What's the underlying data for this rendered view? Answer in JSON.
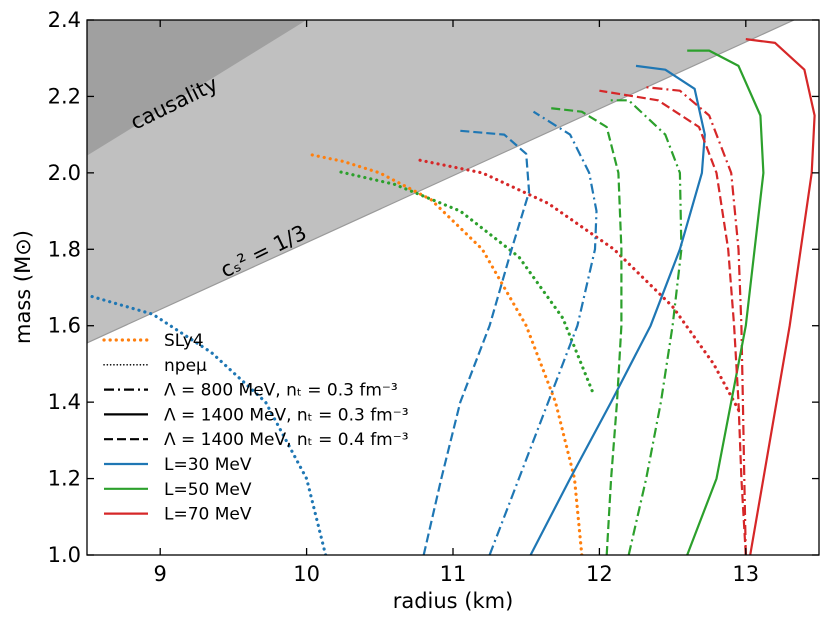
{
  "chart_data": {
    "type": "line",
    "xlabel": "radius (km)",
    "ylabel": "mass (M⊙)",
    "xlim": [
      8.5,
      13.5
    ],
    "ylim": [
      1.0,
      2.4
    ],
    "xticks": [
      9,
      10,
      11,
      12,
      13
    ],
    "yticks": [
      1.0,
      1.2,
      1.4,
      1.6,
      1.8,
      2.0,
      2.2,
      2.4
    ],
    "xtick_labels": [
      "9",
      "10",
      "11",
      "12",
      "13"
    ],
    "ytick_labels": [
      "1.0",
      "1.2",
      "1.4",
      "1.6",
      "1.8",
      "2.0",
      "2.2",
      "2.4"
    ],
    "grid": false,
    "regions": [
      {
        "name": "causality",
        "label": "causality",
        "boundary": [
          [
            8.5,
            2.045
          ],
          [
            10.0,
            2.4
          ]
        ],
        "color": "#a0a0a0"
      },
      {
        "name": "cs2-third",
        "label": "cₛ² = 1/3",
        "boundary": [
          [
            8.5,
            1.555
          ],
          [
            13.5,
            2.43
          ]
        ],
        "color": "#c0c0c0"
      }
    ],
    "series": [
      {
        "name": "SLy4",
        "color": "#ff7f0e",
        "style": "dotted-thick",
        "points": [
          [
            11.88,
            1.0
          ],
          [
            11.83,
            1.2
          ],
          [
            11.7,
            1.4
          ],
          [
            11.5,
            1.6
          ],
          [
            11.2,
            1.8
          ],
          [
            10.85,
            1.93
          ],
          [
            10.5,
            2.0
          ],
          [
            10.25,
            2.03
          ],
          [
            10.0,
            2.05
          ]
        ]
      },
      {
        "name": "npeμ L=30",
        "color": "#1f77b4",
        "style": "dotted-thick",
        "points": [
          [
            10.13,
            1.0
          ],
          [
            10.0,
            1.2
          ],
          [
            9.72,
            1.4
          ],
          [
            9.35,
            1.53
          ],
          [
            8.95,
            1.63
          ],
          [
            8.5,
            1.68
          ]
        ]
      },
      {
        "name": "npeμ L=50",
        "color": "#2ca02c",
        "style": "dotted-thick",
        "points": [
          [
            11.95,
            1.43
          ],
          [
            11.75,
            1.62
          ],
          [
            11.45,
            1.78
          ],
          [
            11.05,
            1.9
          ],
          [
            10.6,
            1.97
          ],
          [
            10.2,
            2.005
          ]
        ]
      },
      {
        "name": "npeμ L=70",
        "color": "#d62728",
        "style": "dotted-thick",
        "points": [
          [
            12.95,
            1.38
          ],
          [
            12.78,
            1.5
          ],
          [
            12.5,
            1.65
          ],
          [
            12.1,
            1.8
          ],
          [
            11.65,
            1.92
          ],
          [
            11.2,
            2.0
          ],
          [
            10.75,
            2.035
          ]
        ]
      },
      {
        "name": "Λ=800 MeV L=30",
        "color": "#1f77b4",
        "style": "dashdot",
        "points": [
          [
            11.25,
            1.0
          ],
          [
            11.45,
            1.2
          ],
          [
            11.65,
            1.4
          ],
          [
            11.85,
            1.6
          ],
          [
            11.97,
            1.8
          ],
          [
            11.98,
            1.9
          ],
          [
            11.93,
            2.0
          ],
          [
            11.8,
            2.1
          ],
          [
            11.55,
            2.16
          ]
        ]
      },
      {
        "name": "Λ=800 MeV L=50",
        "color": "#2ca02c",
        "style": "dashdot",
        "points": [
          [
            12.2,
            1.0
          ],
          [
            12.32,
            1.2
          ],
          [
            12.42,
            1.4
          ],
          [
            12.5,
            1.6
          ],
          [
            12.56,
            1.8
          ],
          [
            12.55,
            2.0
          ],
          [
            12.45,
            2.1
          ],
          [
            12.2,
            2.19
          ],
          [
            12.05,
            2.19
          ]
        ]
      },
      {
        "name": "Λ=800 MeV L=70",
        "color": "#d62728",
        "style": "dashdot",
        "points": [
          [
            13.0,
            1.0
          ],
          [
            12.99,
            1.2
          ],
          [
            12.98,
            1.4
          ],
          [
            12.97,
            1.6
          ],
          [
            12.95,
            1.8
          ],
          [
            12.9,
            2.0
          ],
          [
            12.75,
            2.15
          ],
          [
            12.55,
            2.215
          ],
          [
            12.3,
            2.225
          ]
        ]
      },
      {
        "name": "Λ=1400 MeV n=0.3 L=30",
        "color": "#1f77b4",
        "style": "solid",
        "points": [
          [
            11.53,
            1.0
          ],
          [
            11.8,
            1.2
          ],
          [
            12.08,
            1.4
          ],
          [
            12.35,
            1.6
          ],
          [
            12.55,
            1.8
          ],
          [
            12.7,
            2.0
          ],
          [
            12.72,
            2.1
          ],
          [
            12.65,
            2.22
          ],
          [
            12.45,
            2.27
          ],
          [
            12.25,
            2.28
          ]
        ]
      },
      {
        "name": "Λ=1400 MeV n=0.3 L=50",
        "color": "#2ca02c",
        "style": "solid",
        "points": [
          [
            12.6,
            1.0
          ],
          [
            12.8,
            1.2
          ],
          [
            13.0,
            1.6
          ],
          [
            13.12,
            2.0
          ],
          [
            13.1,
            2.15
          ],
          [
            12.95,
            2.28
          ],
          [
            12.75,
            2.32
          ],
          [
            12.6,
            2.32
          ]
        ]
      },
      {
        "name": "Λ=1400 MeV n=0.3 L=70",
        "color": "#d62728",
        "style": "solid",
        "points": [
          [
            13.03,
            1.0
          ],
          [
            13.12,
            1.2
          ],
          [
            13.3,
            1.6
          ],
          [
            13.45,
            2.0
          ],
          [
            13.47,
            2.15
          ],
          [
            13.4,
            2.27
          ],
          [
            13.2,
            2.34
          ],
          [
            13.0,
            2.35
          ]
        ]
      },
      {
        "name": "Λ=1400 MeV n=0.4 L=30",
        "color": "#1f77b4",
        "style": "dashed",
        "points": [
          [
            10.8,
            1.0
          ],
          [
            10.92,
            1.2
          ],
          [
            11.05,
            1.4
          ],
          [
            11.25,
            1.6
          ],
          [
            11.4,
            1.8
          ],
          [
            11.52,
            1.95
          ],
          [
            11.5,
            2.05
          ],
          [
            11.35,
            2.1
          ],
          [
            11.05,
            2.11
          ]
        ]
      },
      {
        "name": "Λ=1400 MeV n=0.4 L=50",
        "color": "#2ca02c",
        "style": "dashed",
        "points": [
          [
            12.05,
            1.0
          ],
          [
            12.08,
            1.2
          ],
          [
            12.12,
            1.4
          ],
          [
            12.15,
            1.6
          ],
          [
            12.15,
            1.8
          ],
          [
            12.13,
            2.0
          ],
          [
            12.05,
            2.12
          ],
          [
            11.88,
            2.16
          ],
          [
            11.65,
            2.17
          ]
        ]
      },
      {
        "name": "Λ=1400 MeV n=0.4 L=70",
        "color": "#d62728",
        "style": "dashed",
        "points": [
          [
            13.0,
            1.0
          ],
          [
            12.97,
            1.2
          ],
          [
            12.95,
            1.4
          ],
          [
            12.92,
            1.6
          ],
          [
            12.88,
            1.8
          ],
          [
            12.8,
            2.0
          ],
          [
            12.68,
            2.12
          ],
          [
            12.4,
            2.19
          ],
          [
            12.0,
            2.215
          ]
        ]
      }
    ],
    "legend": {
      "placement": "lower-left",
      "entries": [
        {
          "label": "SLy4",
          "style": "dotted-thick",
          "color": "#ff7f0e"
        },
        {
          "label": "npeμ",
          "style": "dotted-thin",
          "color": "#000000"
        },
        {
          "label": "Λ = 800 MeV,  nₜ = 0.3 fm⁻³",
          "style": "dashdot",
          "color": "#000000"
        },
        {
          "label": "Λ = 1400 MeV, nₜ = 0.3 fm⁻³",
          "style": "solid",
          "color": "#000000"
        },
        {
          "label": "Λ = 1400 MeV, nₜ = 0.4 fm⁻³",
          "style": "dashed",
          "color": "#000000"
        },
        {
          "label": "L=30 MeV",
          "style": "solid",
          "color": "#1f77b4"
        },
        {
          "label": "L=50 MeV",
          "style": "solid",
          "color": "#2ca02c"
        },
        {
          "label": "L=70 MeV",
          "style": "solid",
          "color": "#d62728"
        }
      ]
    }
  }
}
